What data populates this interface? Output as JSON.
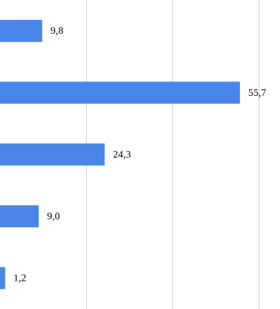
{
  "chart_data": {
    "type": "hbar",
    "categories": [
      null,
      null,
      null,
      null,
      null
    ],
    "values": [
      9.8,
      55.7,
      24.3,
      9.0,
      1.2
    ],
    "value_labels": [
      "9,8",
      "55,7",
      "24,3",
      "9,0",
      "1,2"
    ],
    "color": "#4a86e8",
    "xlim": [
      0,
      65
    ],
    "xticks": [
      20,
      40,
      60
    ],
    "grid": true,
    "tick_labels": false
  }
}
